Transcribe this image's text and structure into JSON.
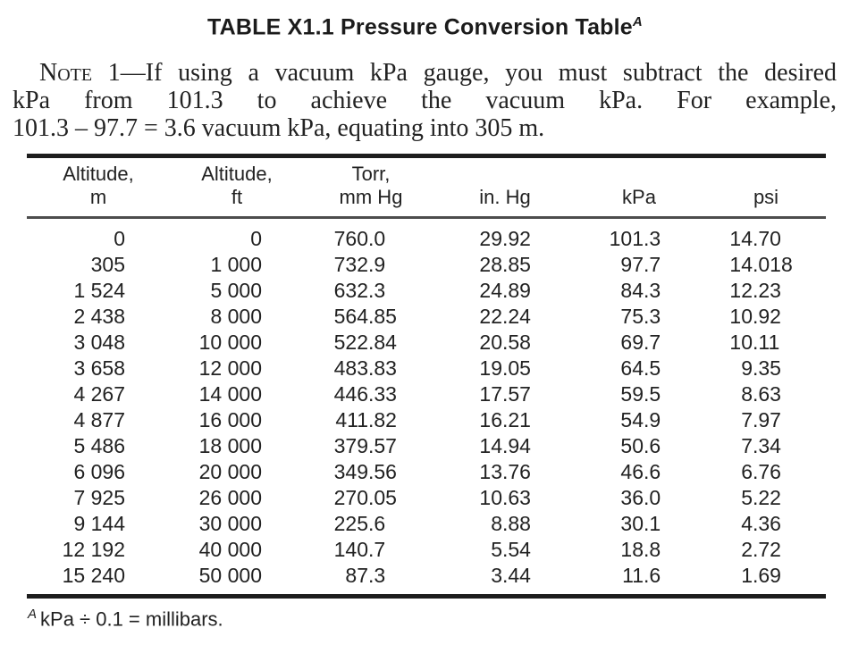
{
  "title": {
    "text": "TABLE X1.1 Pressure Conversion Table",
    "footnote_ref": "A"
  },
  "note": {
    "label": "Note",
    "line1_mid": " 1—",
    "line1_rest": "If using a vacuum kPa gauge, you must subtract the desired",
    "line2": "kPa from 101.3 to achieve the vacuum kPa. For example,",
    "line3": "101.3 – 97.7 = 3.6 vacuum kPa, equating into 305 m."
  },
  "table": {
    "headers": [
      {
        "line1": "Altitude,",
        "line2": "m"
      },
      {
        "line1": "Altitude,",
        "line2": "ft"
      },
      {
        "line1": "Torr,",
        "line2": "mm Hg"
      },
      {
        "line1": "",
        "line2": "in. Hg"
      },
      {
        "line1": "",
        "line2": "kPa"
      },
      {
        "line1": "",
        "line2": "psi"
      }
    ],
    "col_types": [
      "int",
      "int",
      "dec",
      "dec",
      "dec",
      "dec"
    ],
    "rows": [
      [
        "0",
        "0",
        "760.0",
        "29.92",
        "101.3",
        "14.70"
      ],
      [
        "305",
        "1 000",
        "732.9",
        "28.85",
        "97.7",
        "14.018"
      ],
      [
        "1 524",
        "5 000",
        "632.3",
        "24.89",
        "84.3",
        "12.23"
      ],
      [
        "2 438",
        "8 000",
        "564.85",
        "22.24",
        "75.3",
        "10.92"
      ],
      [
        "3 048",
        "10 000",
        "522.84",
        "20.58",
        "69.7",
        "10.11"
      ],
      [
        "3 658",
        "12 000",
        "483.83",
        "19.05",
        "64.5",
        "9.35"
      ],
      [
        "4 267",
        "14 000",
        "446.33",
        "17.57",
        "59.5",
        "8.63"
      ],
      [
        "4 877",
        "16 000",
        "411.82",
        "16.21",
        "54.9",
        "7.97"
      ],
      [
        "5 486",
        "18 000",
        "379.57",
        "14.94",
        "50.6",
        "7.34"
      ],
      [
        "6 096",
        "20 000",
        "349.56",
        "13.76",
        "46.6",
        "6.76"
      ],
      [
        "7 925",
        "26 000",
        "270.05",
        "10.63",
        "36.0",
        "5.22"
      ],
      [
        "9 144",
        "30 000",
        "225.6",
        "8.88",
        "30.1",
        "4.36"
      ],
      [
        "12 192",
        "40 000",
        "140.7",
        "5.54",
        "18.8",
        "2.72"
      ],
      [
        "15 240",
        "50 000",
        "87.3",
        "3.44",
        "11.6",
        "1.69"
      ]
    ]
  },
  "footnote": {
    "ref": "A",
    "text": "kPa ÷ 0.1 = millibars."
  },
  "colors": {
    "text": "#1b1b1b",
    "rule_heavy": "#1d1d1d",
    "rule_light": "#4d4d4d",
    "background": "#ffffff"
  }
}
